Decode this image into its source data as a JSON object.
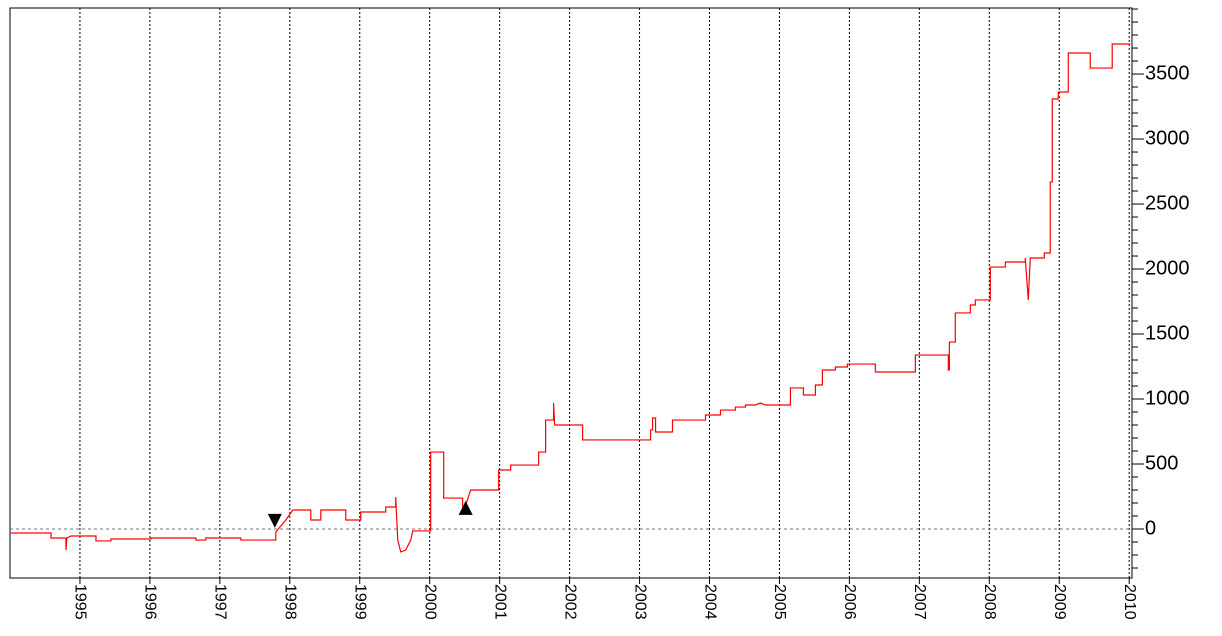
{
  "chart_data": {
    "type": "line",
    "xlim": [
      1994.0,
      2010.04
    ],
    "ylim": [
      -377,
      4008
    ],
    "xticks": [
      1995,
      1996,
      1997,
      1998,
      1999,
      2000,
      2001,
      2002,
      2003,
      2004,
      2005,
      2006,
      2007,
      2008,
      2009,
      2010
    ],
    "yticks": [
      0,
      500,
      1000,
      1500,
      2000,
      2500,
      3000,
      3500
    ],
    "y_minor_ticks": [
      -300,
      -200,
      -100,
      100,
      200,
      300,
      400,
      600,
      700,
      800,
      900,
      1100,
      1200,
      1300,
      1400,
      1600,
      1700,
      1800,
      1900,
      2100,
      2200,
      2300,
      2400,
      2600,
      2700,
      2800,
      2900,
      3100,
      3200,
      3300,
      3400,
      3600,
      3700,
      3800,
      3900,
      4000
    ],
    "grid": true,
    "zero_line": true,
    "series": [
      {
        "color": "#ff0000",
        "x": [
          1994.014,
          1994.586,
          1994.586,
          1994.8,
          1994.8,
          1994.814,
          1994.871,
          1995.229,
          1995.229,
          1995.443,
          1995.443,
          1996.014,
          1996.014,
          1996.657,
          1996.657,
          1996.8,
          1996.8,
          1997.3,
          1997.3,
          1997.8,
          1997.8,
          1997.943,
          1998.043,
          1998.3,
          1998.3,
          1998.443,
          1998.443,
          1998.8,
          1998.8,
          1999.014,
          1999.014,
          1999.371,
          1999.371,
          1999.514,
          1999.514,
          1999.543,
          1999.586,
          1999.657,
          1999.729,
          1999.757,
          2000.014,
          2000.014,
          2000.2,
          2000.2,
          2000.471,
          2000.471,
          2000.529,
          2000.586,
          2000.986,
          2000.986,
          2001.157,
          2001.157,
          2001.557,
          2001.557,
          2001.657,
          2001.657,
          2001.771,
          2001.771,
          2001.786,
          2002.186,
          2002.186,
          2003.157,
          2003.157,
          2003.186,
          2003.186,
          2003.229,
          2003.229,
          2003.471,
          2003.471,
          2003.943,
          2003.943,
          2004.157,
          2004.157,
          2004.371,
          2004.371,
          2004.514,
          2004.514,
          2004.657,
          2004.729,
          2004.8,
          2005.157,
          2005.157,
          2005.343,
          2005.343,
          2005.514,
          2005.514,
          2005.614,
          2005.614,
          2005.8,
          2005.8,
          2005.971,
          2005.971,
          2006.371,
          2006.371,
          2006.943,
          2006.943,
          2007.414,
          2007.414,
          2007.429,
          2007.429,
          2007.514,
          2007.514,
          2007.729,
          2007.729,
          2007.8,
          2007.8,
          2008.014,
          2008.014,
          2008.229,
          2008.229,
          2008.514,
          2008.514,
          2008.557,
          2008.586,
          2008.786,
          2008.786,
          2008.829,
          2008.871,
          2008.871,
          2008.9,
          2008.9,
          2008.986,
          2008.986,
          2009.129,
          2009.129,
          2009.443,
          2009.443,
          2009.757,
          2009.757,
          2010.014
        ],
        "values": [
          -31,
          -31,
          -69,
          -69,
          -162,
          -69,
          -54,
          -54,
          -92,
          -92,
          -77,
          -77,
          -69,
          -69,
          -85,
          -85,
          -69,
          -69,
          -85,
          -85,
          -23,
          69,
          146,
          146,
          69,
          69,
          146,
          146,
          69,
          69,
          131,
          131,
          169,
          169,
          246,
          -85,
          -177,
          -162,
          -85,
          -15,
          -15,
          592,
          592,
          238,
          238,
          146,
          208,
          300,
          300,
          454,
          454,
          492,
          492,
          592,
          592,
          838,
          838,
          969,
          800,
          800,
          685,
          685,
          762,
          762,
          854,
          854,
          746,
          746,
          838,
          838,
          877,
          877,
          915,
          915,
          938,
          938,
          954,
          954,
          969,
          954,
          954,
          1085,
          1085,
          1031,
          1031,
          1108,
          1108,
          1223,
          1223,
          1246,
          1246,
          1269,
          1269,
          1208,
          1208,
          1338,
          1338,
          1223,
          1223,
          1438,
          1438,
          1662,
          1662,
          1723,
          1723,
          1762,
          1762,
          2015,
          2015,
          2054,
          2054,
          2085,
          1762,
          2085,
          2085,
          2123,
          2123,
          2123,
          2669,
          2669,
          3308,
          3308,
          3362,
          3362,
          3662,
          3662,
          3546,
          3546,
          3731,
          3731
        ]
      }
    ],
    "markers": [
      {
        "shape": "down",
        "x": 1997.786,
        "y": 62
      },
      {
        "shape": "up",
        "x": 2000.514,
        "y": 162
      }
    ]
  }
}
